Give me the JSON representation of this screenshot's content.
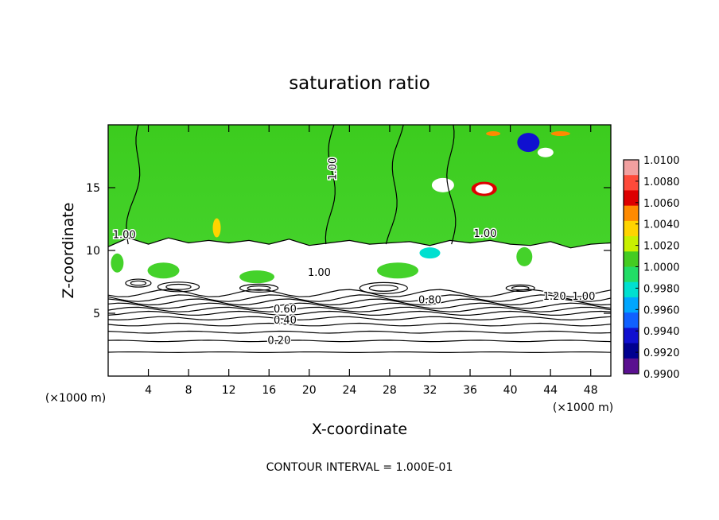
{
  "chart_data": {
    "type": "heatmap",
    "title": "saturation ratio",
    "xlabel": "X-coordinate",
    "ylabel": "Z-coordinate",
    "x_unit": "(×1000 m)",
    "z_unit": "(×1000 m)",
    "footer": "CONTOUR INTERVAL = 1.000E-01",
    "xlim": [
      0,
      50
    ],
    "ylim": [
      0,
      20
    ],
    "x_ticks": [
      {
        "value": 4,
        "label": "4"
      },
      {
        "value": 8,
        "label": "8"
      },
      {
        "value": 12,
        "label": "12"
      },
      {
        "value": 16,
        "label": "16"
      },
      {
        "value": 20,
        "label": "20"
      },
      {
        "value": 24,
        "label": "24"
      },
      {
        "value": 28,
        "label": "28"
      },
      {
        "value": 32,
        "label": "32"
      },
      {
        "value": 36,
        "label": "36"
      },
      {
        "value": 40,
        "label": "40"
      },
      {
        "value": 44,
        "label": "44"
      },
      {
        "value": 48,
        "label": "48"
      }
    ],
    "y_ticks": [
      {
        "value": 5,
        "label": "5"
      },
      {
        "value": 10,
        "label": "10"
      },
      {
        "value": 15,
        "label": "15"
      }
    ],
    "colorbar": {
      "range": [
        0.99,
        1.01
      ],
      "labels": [
        "1.0100",
        "1.0080",
        "1.0060",
        "1.0040",
        "1.0020",
        "1.0000",
        "0.9980",
        "0.9960",
        "0.9940",
        "0.9920",
        "0.9900"
      ],
      "colors": [
        "#f2a0a0",
        "#ff4a3a",
        "#dd0000",
        "#ff8a00",
        "#ffd400",
        "#c8f000",
        "#44cc22",
        "#22dd66",
        "#00e0d0",
        "#00a6ff",
        "#1060ff",
        "#1010d0",
        "#000090",
        "#5a1090"
      ]
    },
    "contour_interval": 0.1,
    "contour_labels": [
      {
        "text": "1.00",
        "x": 22.4,
        "z": 16.5,
        "rotate": -90
      },
      {
        "text": "1.00",
        "x": 1.6,
        "z": 11.2,
        "rotate": 0
      },
      {
        "text": "1.00",
        "x": 37.5,
        "z": 11.3,
        "rotate": 0
      },
      {
        "text": "1.00",
        "x": 21.0,
        "z": 8.2,
        "rotate": 0
      },
      {
        "text": "0.60",
        "x": 17.6,
        "z": 5.3,
        "rotate": 0
      },
      {
        "text": "0.40",
        "x": 17.6,
        "z": 4.4,
        "rotate": 0
      },
      {
        "text": "0.20",
        "x": 17.0,
        "z": 2.8,
        "rotate": 0
      },
      {
        "text": "0.80",
        "x": 32.0,
        "z": 6.0,
        "rotate": 0
      },
      {
        "text": "1.20",
        "x": 44.4,
        "z": 6.3,
        "rotate": 0
      },
      {
        "text": "1.00",
        "x": 47.3,
        "z": 6.3,
        "rotate": 0
      }
    ],
    "dry_region_contours": [
      0.2,
      0.3,
      0.4,
      0.5,
      0.6,
      0.7,
      0.8
    ],
    "dry_region_levels_z": [
      1.9,
      2.8,
      3.5,
      4.1,
      4.6,
      5.0,
      5.3,
      5.6,
      5.9,
      6.2,
      6.6
    ],
    "green_boundary_z": [
      [
        0,
        10.3
      ],
      [
        2,
        11.0
      ],
      [
        4,
        10.5
      ],
      [
        6,
        11.0
      ],
      [
        8,
        10.6
      ],
      [
        10,
        10.8
      ],
      [
        12,
        10.6
      ],
      [
        14,
        10.8
      ],
      [
        16,
        10.5
      ],
      [
        18,
        10.9
      ],
      [
        20,
        10.4
      ],
      [
        22,
        10.6
      ],
      [
        24,
        10.8
      ],
      [
        26,
        10.5
      ],
      [
        28,
        10.6
      ],
      [
        30,
        10.7
      ],
      [
        32,
        10.4
      ],
      [
        34,
        10.8
      ],
      [
        36,
        10.6
      ],
      [
        38,
        10.8
      ],
      [
        40,
        10.5
      ],
      [
        42,
        10.4
      ],
      [
        44,
        10.7
      ],
      [
        46,
        10.2
      ],
      [
        48,
        10.5
      ],
      [
        50,
        10.6
      ]
    ],
    "cloud_top_contour_x": [
      [
        3.3,
        20
      ],
      [
        3.2,
        18
      ],
      [
        3.0,
        16
      ],
      [
        3.0,
        14.5
      ],
      [
        2.8,
        13.2
      ],
      [
        2.5,
        12.0
      ],
      [
        2.0,
        11.2
      ]
    ]
  }
}
